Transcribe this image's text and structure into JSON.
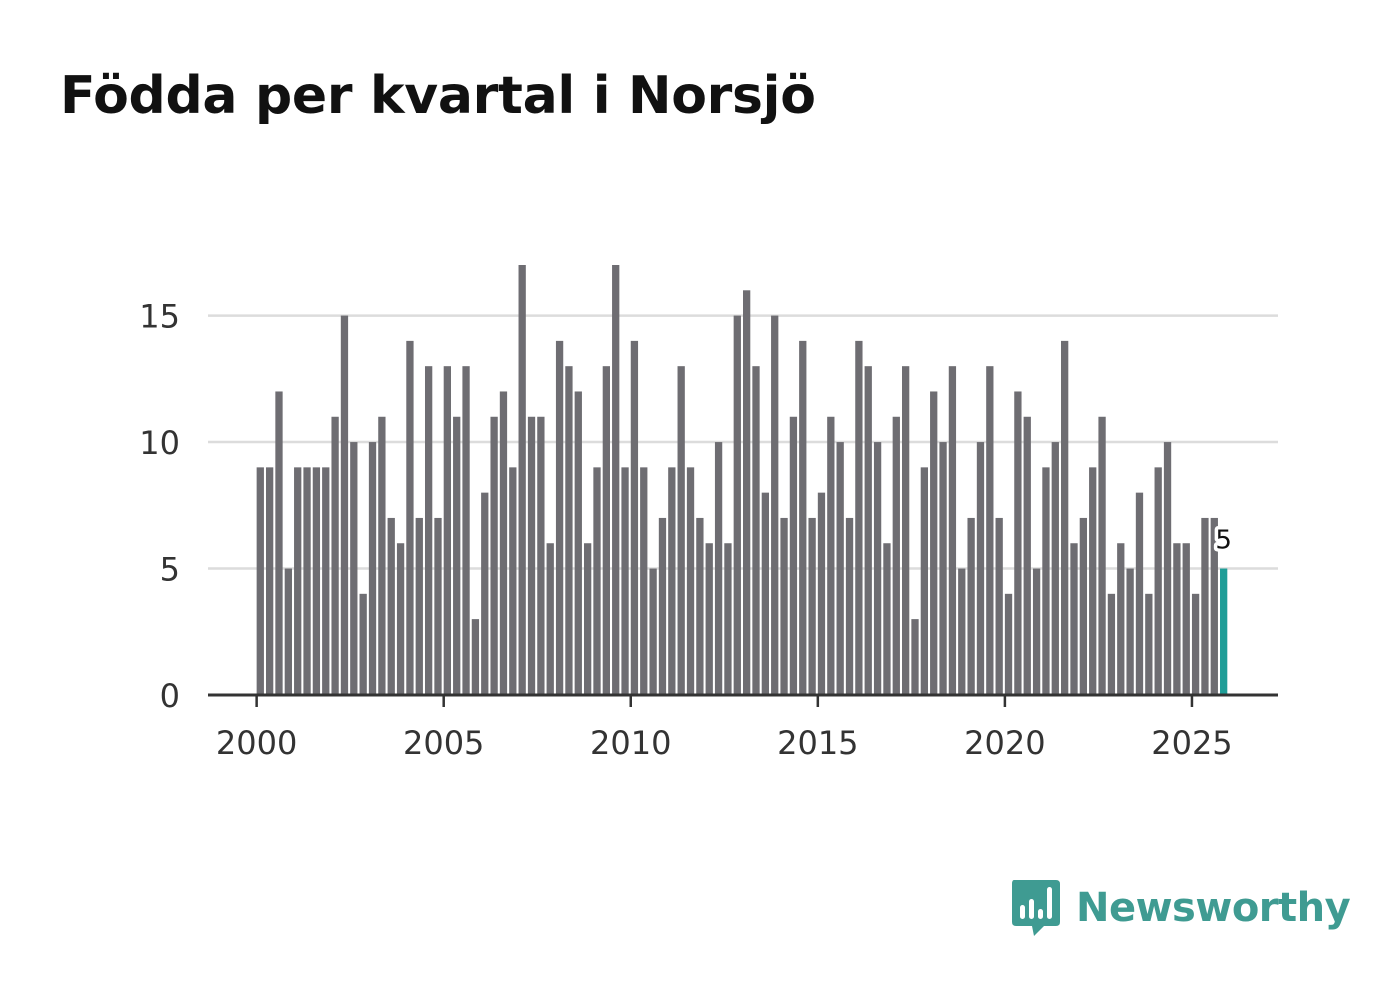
{
  "colors": {
    "bar": "#6e6d72",
    "highlight": "#1f9d97",
    "brand": "#3f9b92",
    "grid": "#dcdcdc",
    "axis": "#333333"
  },
  "brand": {
    "name": "Newsworthy",
    "icon": "newsworthy-logo-icon"
  },
  "chart_data": {
    "type": "bar",
    "title": "Födda per kvartal i Norsjö",
    "xlabel": "",
    "ylabel": "",
    "ylim": [
      0,
      17
    ],
    "xlim": [
      1998.7,
      2027.3
    ],
    "yticks": [
      0,
      5,
      10,
      15
    ],
    "xticks": [
      2000,
      2005,
      2010,
      2015,
      2020,
      2025
    ],
    "grid": true,
    "start_quarter": "2000 Q1",
    "values": [
      9,
      9,
      12,
      5,
      9,
      9,
      9,
      9,
      11,
      15,
      10,
      4,
      10,
      11,
      7,
      6,
      14,
      7,
      13,
      7,
      13,
      11,
      13,
      3,
      8,
      11,
      12,
      9,
      17,
      11,
      11,
      6,
      14,
      13,
      12,
      6,
      9,
      13,
      17,
      9,
      14,
      9,
      5,
      7,
      9,
      13,
      9,
      7,
      6,
      10,
      6,
      15,
      16,
      13,
      8,
      15,
      7,
      11,
      14,
      7,
      8,
      11,
      10,
      7,
      14,
      13,
      10,
      6,
      11,
      13,
      3,
      9,
      12,
      10,
      13,
      5,
      7,
      10,
      13,
      7,
      4,
      12,
      11,
      5,
      9,
      10,
      14,
      6,
      7,
      9,
      11,
      4,
      6,
      5,
      8,
      4,
      9,
      10,
      6,
      6,
      4,
      7,
      7,
      5
    ],
    "highlight": {
      "index": 103,
      "label": "5"
    }
  }
}
